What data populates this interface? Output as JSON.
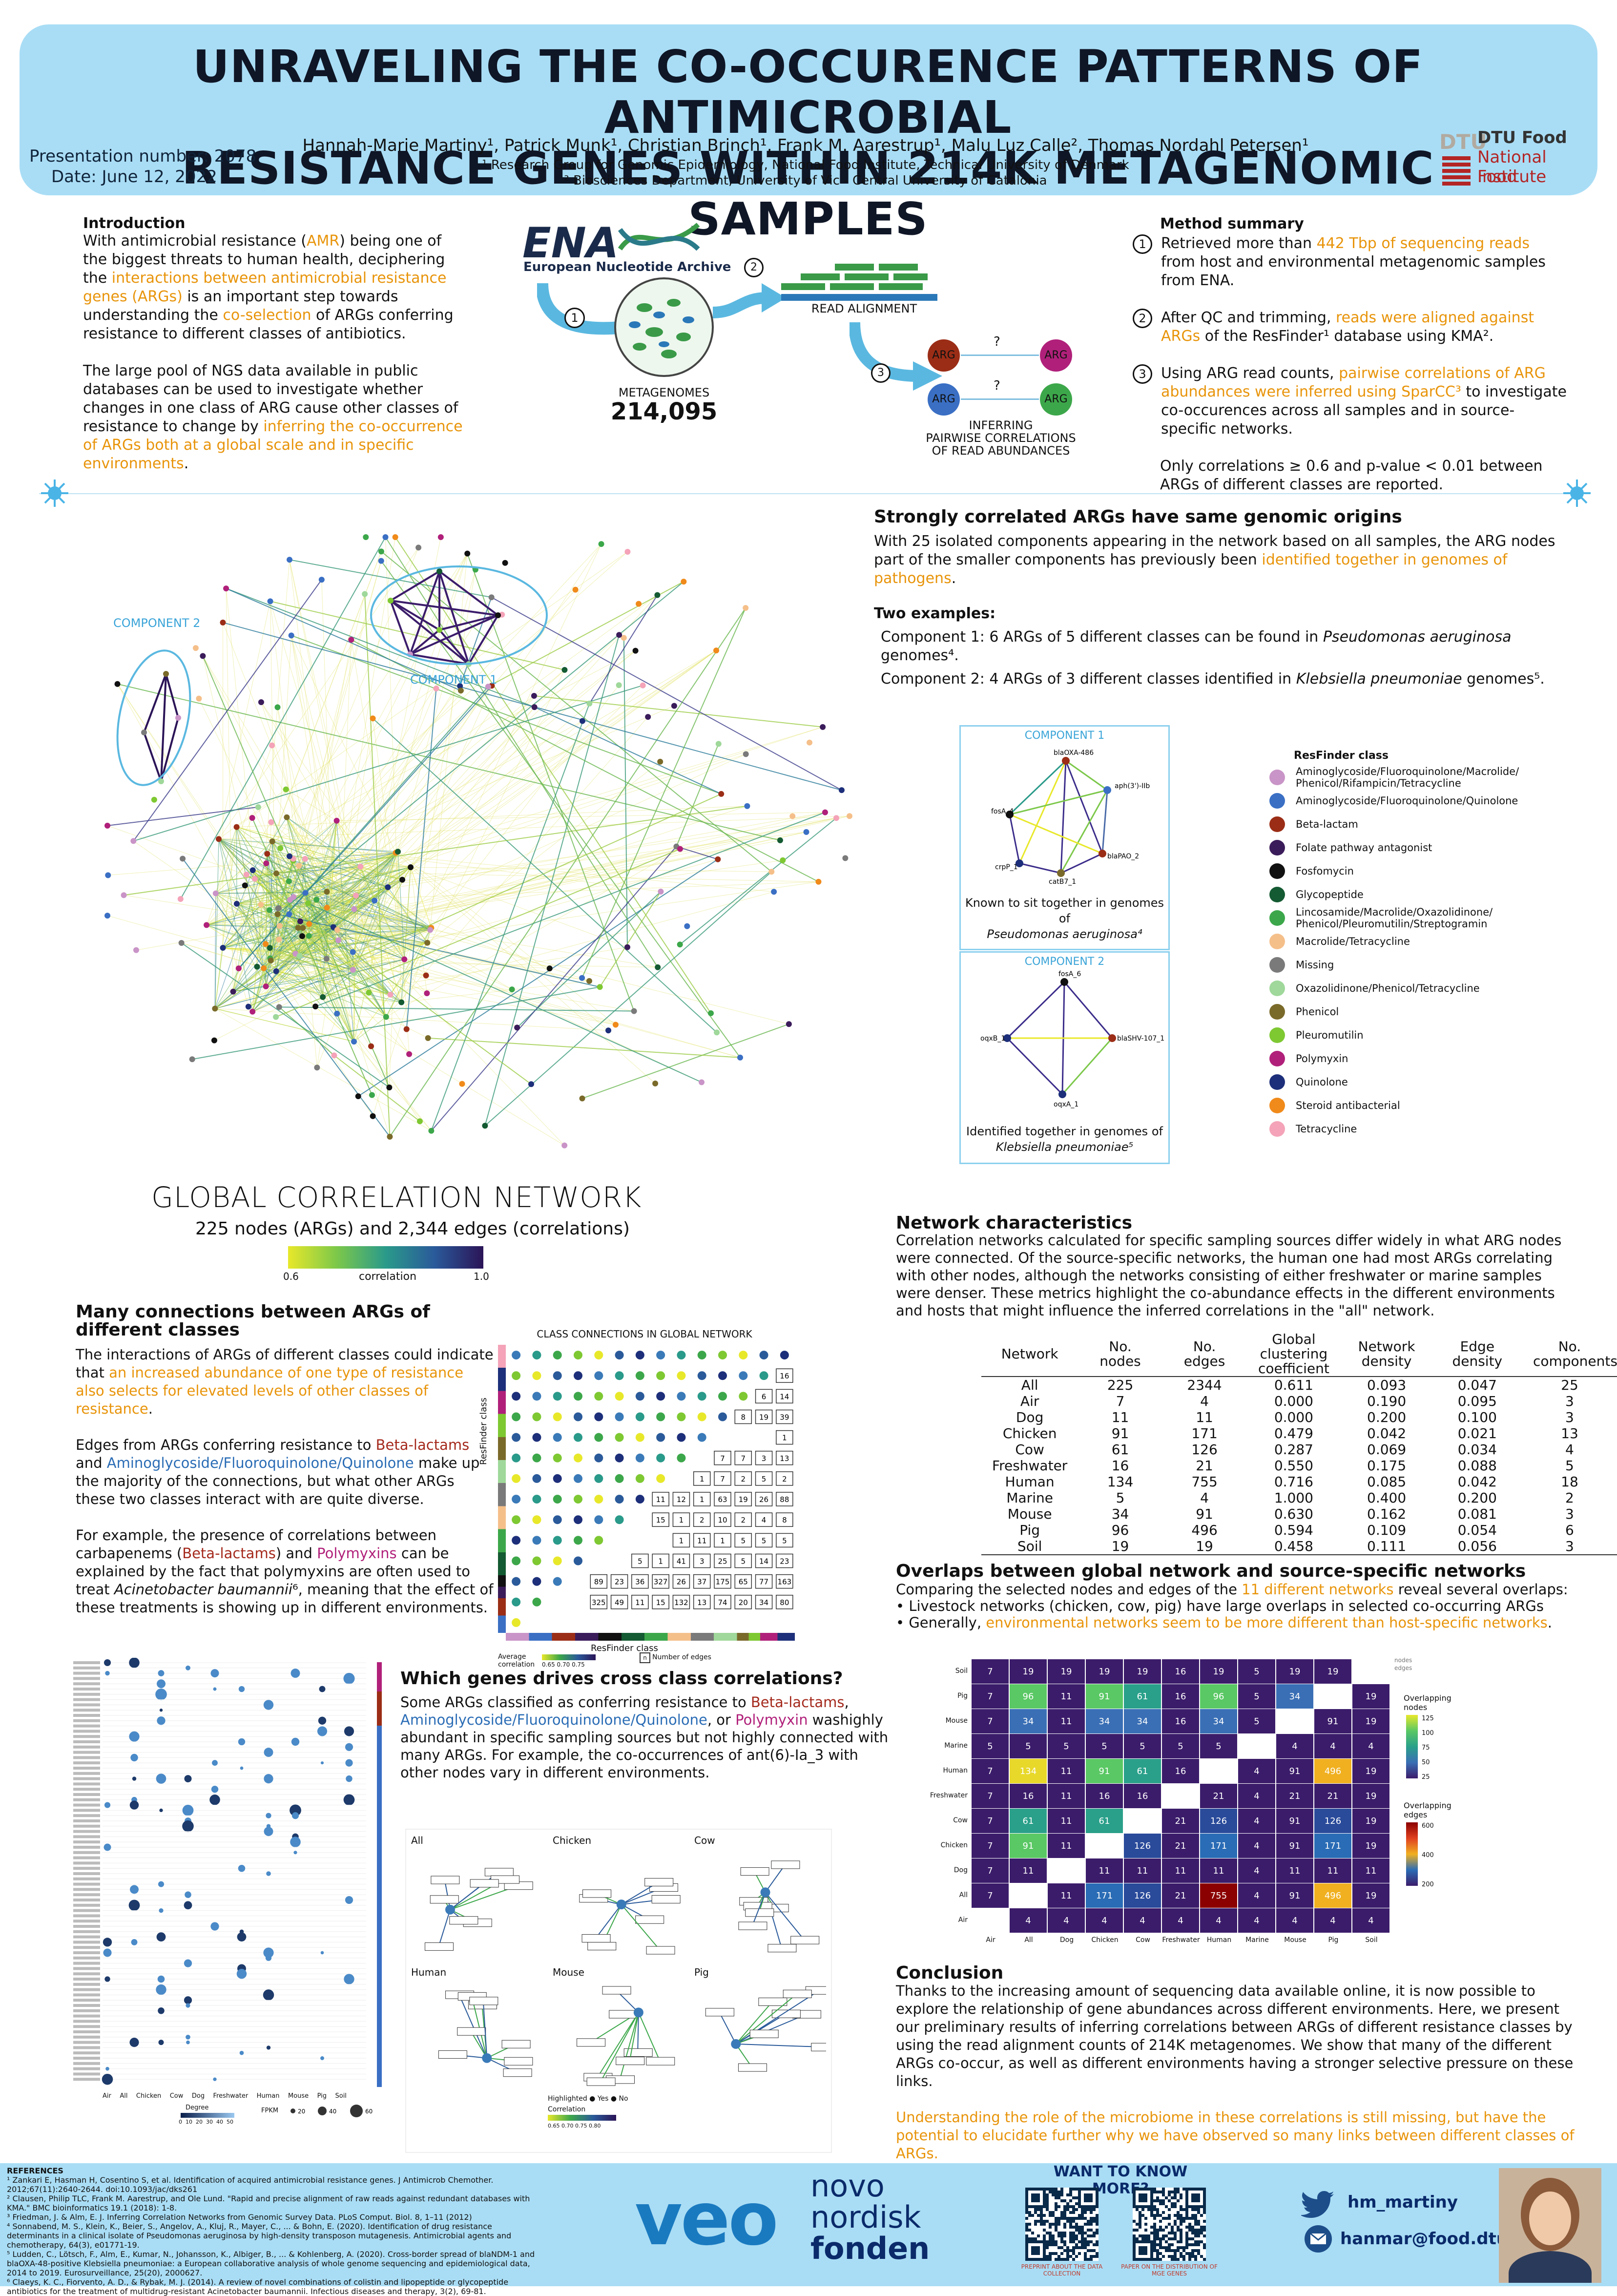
{
  "header": {
    "title_line1": "UNRAVELING THE CO-OCCURENCE PATTERNS OF ANTIMICROBIAL",
    "title_line2": "RESISTANCE GENES WITHIN 214K METAGENOMIC SAMPLES",
    "authors": "Hannah-Marie Martiny¹, Patrick Munk¹, Christian Brinch¹, Frank M. Aarestrup¹, Malu Luz Calle², Thomas Nordahl Petersen¹",
    "affiliation1": "¹ Research Group for Genomic Epidemiology, National Food Institute, Technical University of Denmark",
    "affiliation2": "² Biosciences Department, University of Vic - Central University of Catalonia",
    "presentation_number": "Presentation number: 2078",
    "date": "Date: June 12, 2022",
    "logo_dtu": "DTU",
    "logo_line1": "DTU Food",
    "logo_line2": "National Food",
    "logo_line3": "Institute"
  },
  "intro": {
    "heading": "Introduction",
    "p1_a": "With antimicrobial resistance (",
    "p1_b": "AMR",
    "p1_c": ") being one of the biggest threats to human health, deciphering the ",
    "p1_d": "interactions between antimicrobial resistance genes (ARGs)",
    "p1_e": " is an important step towards understanding the ",
    "p1_f": "co-selection",
    "p1_g": " of ARGs conferring resistance to different classes of antibiotics.",
    "p2_a": "The large pool of NGS data available in public databases can be used to investigate whether changes in one class of ARG cause other classes of resistance to change by ",
    "p2_b": "inferring the co-occurrence of ARGs both at a global scale and in specific environments",
    "p2_c": "."
  },
  "workflow": {
    "ena_logo": "ENA",
    "ena_name": "European Nucleotide Archive",
    "metagenomes_label": "METAGENOMES",
    "metagenomes_count": "214,095",
    "read_alignment": "READ ALIGNMENT",
    "inferring_1": "INFERRING",
    "inferring_2": "PAIRWISE CORRELATIONS",
    "inferring_3": "OF READ ABUNDANCES",
    "arg": "ARG",
    "question": "?",
    "step1": "1",
    "step2": "2",
    "step3": "3"
  },
  "method": {
    "heading": "Method summary",
    "s1_a": "Retrieved more than ",
    "s1_b": "442 Tbp of sequencing reads",
    "s1_c": " from host and environmental metagenomic samples from ENA.",
    "s2_a": "After QC and trimming, ",
    "s2_b": "reads were aligned against ARGs",
    "s2_c": " of the ResFinder¹ database using KMA².",
    "s3_a": "Using ARG read counts, ",
    "s3_b": "pairwise correlations of ARG abundances were inferred using SparCC³",
    "s3_c": " to investigate co-occurences across all samples and in source-specific networks.",
    "s4": "Only correlations ≥ 0.6 and p-value < 0.01 between ARGs of different classes are reported."
  },
  "network": {
    "component1_label": "COMPONENT 1",
    "component2_label": "COMPONENT 2",
    "title": "GLOBAL CORRELATION NETWORK",
    "subtitle": "225 nodes (ARGs) and 2,344 edges (correlations)",
    "scale_min": "0.6",
    "scale_label": "correlation",
    "scale_max": "1.0"
  },
  "genomic": {
    "heading": "Strongly correlated ARGs have same genomic origins",
    "text_a": "With 25 isolated components appearing in the network based on all samples, the ARG nodes part of the smaller components has previously been ",
    "text_b": "identified together in genomes of pathogens",
    "text_c": ".",
    "examples_heading": "Two examples:",
    "ex1_a": "Component 1: 6 ARGs of 5 different classes can be found in ",
    "ex1_b": "Pseudomonas aeruginosa",
    "ex1_c": " genomes⁴.",
    "ex2_a": "Component 2: 4 ARGs of 3 different classes identified in ",
    "ex2_b": "Klebsiella pneumoniae",
    "ex2_c": " genomes⁵.",
    "c1_title": "COMPONENT 1",
    "c1_nodes": [
      "blaOXA-486",
      "aph(3')-IIb",
      "fosA_4",
      "blaPAO_2",
      "crpP_1",
      "catB7_1"
    ],
    "c1_caption_a": "Known to sit together in genomes of",
    "c1_caption_b": "Pseudomonas aeruginosa⁴",
    "c2_title": "COMPONENT 2",
    "c2_nodes": [
      "fosA_6",
      "oqxB_1",
      "blaSHV-107_1",
      "oqxA_1"
    ],
    "c2_caption_a": "Identified together in genomes of",
    "c2_caption_b": "Klebsiella pneumoniae⁵"
  },
  "resfinder_legend": {
    "title": "ResFinder class",
    "items": [
      {
        "label": "Aminoglycoside/Fluoroquinolone/Macrolide/ Phenicol/Rifampicin/Tetracycline",
        "color": "#c994c7"
      },
      {
        "label": "Aminoglycoside/Fluoroquinolone/Quinolone",
        "color": "#3a6fc4"
      },
      {
        "label": "Beta-lactam",
        "color": "#9b2d16"
      },
      {
        "label": "Folate pathway antagonist",
        "color": "#3b1c5a"
      },
      {
        "label": "Fosfomycin",
        "color": "#111111"
      },
      {
        "label": "Glycopeptide",
        "color": "#145a32"
      },
      {
        "label": "Lincosamide/Macrolide/Oxazolidinone/ Phenicol/Pleuromutilin/Streptogramin",
        "color": "#3ca74a"
      },
      {
        "label": "Macrolide/Tetracycline",
        "color": "#f5bf8a"
      },
      {
        "label": "Missing",
        "color": "#7a7a7a"
      },
      {
        "label": "Oxazolidinone/Phenicol/Tetracycline",
        "color": "#9fd89a"
      },
      {
        "label": "Phenicol",
        "color": "#7a6a2a"
      },
      {
        "label": "Pleuromutilin",
        "color": "#7ec832"
      },
      {
        "label": "Polymyxin",
        "color": "#b0207a"
      },
      {
        "label": "Quinolone",
        "color": "#1d2f7a"
      },
      {
        "label": "Steroid antibacterial",
        "color": "#f08a1a"
      },
      {
        "label": "Tetracycline",
        "color": "#f4a3b8"
      }
    ]
  },
  "connections": {
    "heading": "Many connections between ARGs of different classes",
    "p1_a": "The interactions of ARGs of different classes could indicate that ",
    "p1_b": "an increased abundance of one type of resistance also selects for elevated levels of other classes of resistance",
    "p1_c": ".",
    "p2_a": "Edges from ARGs conferring resistance to ",
    "p2_b": "Beta-lactams",
    "p2_c": " and ",
    "p2_d": "Aminoglycoside/Fluoroquinolone/Quinolone",
    "p2_e": " make up the majority of the connections, but what other ARGs these two classes interact with are quite diverse.",
    "p3_a": "For example, the presence of correlations between carbapenems (",
    "p3_b": "Beta-lactams",
    "p3_c": ") and ",
    "p3_d": "Polymyxins",
    "p3_e": " can be explained by the fact that polymyxins are often used to treat ",
    "p3_f": "Acinetobacter baumannii",
    "p3_g": "⁶, meaning that the effect of these treatments is showing up in different environments.",
    "matrix_title": "CLASS CONNECTIONS IN GLOBAL NETWORK",
    "matrix_ylabel": "ResFinder class",
    "matrix_xlabel": "ResFinder class",
    "matrix_legend_corr": "Average correlation",
    "matrix_legend_ticks": "0.65 0.70 0.75",
    "matrix_legend_n": "n",
    "matrix_legend_edges": "Number of edges",
    "row_counts": [
      [
        "16"
      ],
      [
        "6",
        "14"
      ],
      [
        "8",
        "19",
        "39"
      ],
      [
        "1"
      ],
      [
        "7",
        "7",
        "3",
        "13"
      ],
      [
        "1",
        "7",
        "2",
        "5",
        "2"
      ],
      [
        "11",
        "12",
        "1",
        "63",
        "19",
        "26",
        "88"
      ],
      [
        "15",
        "1",
        "2",
        "10",
        "2",
        "4",
        "8"
      ],
      [
        "1",
        "11",
        "1",
        "5",
        "5",
        "5"
      ],
      [
        "5",
        "1",
        "41",
        "3",
        "25",
        "5",
        "14",
        "23"
      ],
      [
        "89",
        "23",
        "36",
        "327",
        "26",
        "37",
        "175",
        "65",
        "77",
        "163"
      ],
      [
        "325",
        "49",
        "11",
        "15",
        "132",
        "13",
        "74",
        "20",
        "34",
        "80"
      ]
    ]
  },
  "cross": {
    "heading": "Which genes drives cross class correlations?",
    "p_a": "Some ARGs classified as conferring resistance to ",
    "p_b": "Beta-lactams",
    "p_c": ", ",
    "p_d": "Aminoglycoside/Fluoroquinolone/Quinolone",
    "p_e": ", or ",
    "p_f": "Polymyxin",
    "p_g": " washighly abundant in specific sampling sources but not highly connected with many ARGs. For example, the co-occurrences of ant(6)-Ia_3 with other nodes vary in different environments.",
    "dot_columns": [
      "Air",
      "All",
      "Chicken",
      "Cow",
      "Dog",
      "Freshwater",
      "Human",
      "Mouse",
      "Pig",
      "Soil"
    ],
    "dot_legend_degree": "Degree",
    "dot_legend_degree_ticks": "0  10  20  30  40  50",
    "dot_legend_fpkm": "FPKM",
    "dot_legend_fpkm_ticks": [
      "20",
      "40",
      "60"
    ],
    "panel_titles": [
      "All",
      "Chicken",
      "Cow",
      "Human",
      "Mouse",
      "Pig"
    ],
    "highlight_label": "Highlighted",
    "highlight_yes": "Yes",
    "highlight_no": "No",
    "correlation_label": "Correlation",
    "correlation_ticks": "0.65 0.70 0.75 0.80"
  },
  "characteristics": {
    "heading": "Network characteristics",
    "text": "Correlation networks calculated for specific sampling sources differ widely in what ARG nodes were connected. Of the source-specific networks, the human one had most ARGs correlating with other nodes, although the networks consisting of either freshwater or marine samples were denser. These metrics highlight the co-abundance effects in the different environments and hosts that might influence the inferred correlations in the \"all\" network.",
    "columns": [
      "Network",
      "No. nodes",
      "No. edges",
      "Global clustering coefficient",
      "Network density",
      "Edge density",
      "No. components"
    ],
    "rows": [
      [
        "All",
        "225",
        "2344",
        "0.611",
        "0.093",
        "0.047",
        "25"
      ],
      [
        "Air",
        "7",
        "4",
        "0.000",
        "0.190",
        "0.095",
        "3"
      ],
      [
        "Dog",
        "11",
        "11",
        "0.000",
        "0.200",
        "0.100",
        "3"
      ],
      [
        "Chicken",
        "91",
        "171",
        "0.479",
        "0.042",
        "0.021",
        "13"
      ],
      [
        "Cow",
        "61",
        "126",
        "0.287",
        "0.069",
        "0.034",
        "4"
      ],
      [
        "Freshwater",
        "16",
        "21",
        "0.550",
        "0.175",
        "0.088",
        "5"
      ],
      [
        "Human",
        "134",
        "755",
        "0.716",
        "0.085",
        "0.042",
        "18"
      ],
      [
        "Marine",
        "5",
        "4",
        "1.000",
        "0.400",
        "0.200",
        "2"
      ],
      [
        "Mouse",
        "34",
        "91",
        "0.630",
        "0.162",
        "0.081",
        "3"
      ],
      [
        "Pig",
        "96",
        "496",
        "0.594",
        "0.109",
        "0.054",
        "6"
      ],
      [
        "Soil",
        "19",
        "19",
        "0.458",
        "0.111",
        "0.056",
        "3"
      ]
    ]
  },
  "overlaps": {
    "heading": "Overlaps between global network and source-specific networks",
    "intro_a": "Comparing the selected nodes and edges of the ",
    "intro_b": "11 different networks",
    "intro_c": " reveal several overlaps:",
    "b1": "• Livestock networks (chicken, cow, pig) have large overlaps in selected co-occurring ARGs",
    "b2_a": "• Generally, ",
    "b2_b": "environmental networks seem to be more different than host-specific networks",
    "b2_c": ".",
    "labels": [
      "Soil",
      "Pig",
      "Mouse",
      "Marine",
      "Human",
      "Freshwater",
      "Cow",
      "Chicken",
      "Dog",
      "All",
      "Air"
    ],
    "xlabels": [
      "Air",
      "All",
      "Dog",
      "Chicken",
      "Cow",
      "Freshwater",
      "Human",
      "Marine",
      "Mouse",
      "Pig",
      "Soil"
    ],
    "legend_nodes": "Overlapping nodes",
    "legend_nodes_ticks": [
      "125",
      "100",
      "75",
      "50",
      "25"
    ],
    "legend_edges": "Overlapping edges",
    "legend_edges_ticks": [
      "600",
      "400",
      "200"
    ],
    "corner_nodes": "nodes",
    "corner_edges": "edges",
    "grid": [
      [
        "7",
        "19",
        "19",
        "19",
        "19",
        "16",
        "19",
        "5",
        "19",
        "19",
        ""
      ],
      [
        "7",
        "96",
        "11",
        "91",
        "61",
        "16",
        "96",
        "5",
        "34",
        "",
        "19"
      ],
      [
        "7",
        "34",
        "11",
        "34",
        "34",
        "16",
        "34",
        "5",
        "",
        "91",
        "19"
      ],
      [
        "5",
        "5",
        "5",
        "5",
        "5",
        "5",
        "5",
        "",
        "4",
        "4",
        "4"
      ],
      [
        "7",
        "134",
        "11",
        "91",
        "61",
        "16",
        "",
        "4",
        "91",
        "496",
        "19"
      ],
      [
        "7",
        "16",
        "11",
        "16",
        "16",
        "",
        "21",
        "4",
        "21",
        "21",
        "19"
      ],
      [
        "7",
        "61",
        "11",
        "61",
        "",
        "21",
        "126",
        "4",
        "91",
        "126",
        "19"
      ],
      [
        "7",
        "91",
        "11",
        "",
        "126",
        "21",
        "171",
        "4",
        "91",
        "171",
        "19"
      ],
      [
        "7",
        "11",
        "",
        "11",
        "11",
        "11",
        "11",
        "4",
        "11",
        "11",
        "11"
      ],
      [
        "7",
        "",
        "11",
        "171",
        "126",
        "21",
        "755",
        "4",
        "91",
        "496",
        "19"
      ],
      [
        "",
        "4",
        "4",
        "4",
        "4",
        "4",
        "4",
        "4",
        "4",
        "4",
        "4"
      ]
    ]
  },
  "conclusion": {
    "heading": "Conclusion",
    "p1": "Thanks to the increasing amount of sequencing data available online, it is now possible to explore the relationship of gene abundances across different environments. Here, we present our preliminary results of inferring correlations between ARGs of different resistance classes by using the read alignment counts of 214K metagenomes. We show that many of the different ARGs co-occur, as well as different environments having a stronger selective pressure on these links.",
    "p2": "Understanding the role of the microbiome in these correlations is still missing, but have the potential to elucidate further why we have observed so many links between different classes of ARGs."
  },
  "footer": {
    "refs_title": "REFERENCES",
    "refs": [
      "¹ Zankari E, Hasman H, Cosentino S, et al. Identification of acquired antimicrobial resistance genes. J Antimicrob Chemother. 2012;67(11):2640-2644. doi:10.1093/jac/dks261",
      "² Clausen, Philip TLC, Frank M. Aarestrup, and Ole Lund. \"Rapid and precise alignment of raw reads against redundant databases with KMA.\" BMC bioinformatics 19.1 (2018): 1-8.",
      "³ Friedman, J. & Alm, E. J. Inferring Correlation Networks from Genomic Survey Data. PLoS Comput. Biol. 8, 1–11 (2012)",
      "⁴ Sonnabend, M. S., Klein, K., Beier, S., Angelov, A., Kluj, R., Mayer, C., ... & Bohn, E. (2020). Identification of drug resistance determinants in a clinical isolate of Pseudomonas aeruginosa by high-density transposon mutagenesis. Antimicrobial agents and chemotherapy, 64(3), e01771-19.",
      "⁵ Ludden, C., Lötsch, F., Alm, E., Kumar, N., Johansson, K., Albiger, B., ... & Kohlenberg, A. (2020). Cross-border spread of blaNDM-1 and blaOXA-48-positive Klebsiella pneumoniae: a European collaborative analysis of whole genome sequencing and epidemiological data, 2014 to 2019. Eurosurveillance, 25(20), 2000627.",
      "⁶ Claeys, K. C., Fiorvento, A. D., & Rybak, M. J. (2014). A review of novel combinations of colistin and lipopeptide or glycopeptide antibiotics for the treatment of multidrug-resistant Acinetobacter baumannii. Infectious diseases and therapy, 3(2), 69-81."
    ],
    "veo": "veo",
    "novo_1": "novo",
    "novo_2": "nordisk",
    "novo_3": "fonden",
    "want_more": "WANT TO KNOW MORE?",
    "qr1_caption": "PREPRINT ABOUT THE DATA COLLECTION",
    "qr2_caption": "PAPER ON THE DISTRIBUTION OF MGE GENES",
    "twitter": "hm_martiny",
    "email": "hanmar@food.dtu.dk"
  }
}
